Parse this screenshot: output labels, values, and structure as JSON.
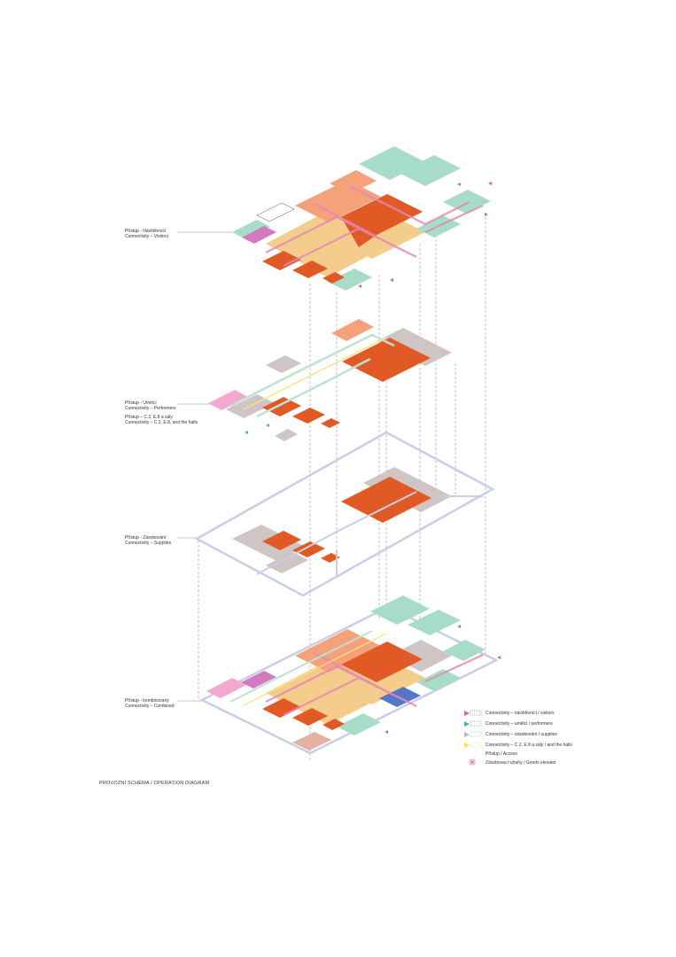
{
  "levels": [
    {
      "line1": "Přístup - Návštěvníci",
      "line2": "Connectivity – Visitors"
    },
    {
      "line1": "Přístup - Umělci",
      "line2": "Connectivity – Performers",
      "line3": "Přístup – C.2, E.8 a sály",
      "line4": "Connectivity – C.2, E.8, and the halls"
    },
    {
      "line1": "Přístup - Zásobování",
      "line2": "Connectivity – Supplies"
    },
    {
      "line1": "Přístup - kombinovaný",
      "line2": "Connectivity – Combined"
    }
  ],
  "legend": [
    {
      "label": "Connectivity – návštěvníci / visitors",
      "color": "#d462a6"
    },
    {
      "label": "Connectivity – umělci / performers",
      "color": "#4fb38d"
    },
    {
      "label": "Connectivity – zásobování / supplies",
      "color": "#a9b6d6"
    },
    {
      "label": "Connectivity – C.2, E.8 a sály / and the halls",
      "color": "#f4e04a"
    },
    {
      "label": "Přístup / Access",
      "color": ""
    },
    {
      "label": "Zásobovací výtahy / Goods elevator",
      "color": "#e8769a"
    }
  ],
  "caption": "PROVOZNÍ SCHÉMA / OPERATION DIAGRAM",
  "colors": {
    "hall": "#e15a26",
    "foyer": "#f4cc8c",
    "salmon": "#f5a27a",
    "mint": "#a7dcc8",
    "grey": "#cfc5c5",
    "pink": "#f3a8d0",
    "purple": "#d27ac0",
    "blue": "#5576c7",
    "outline": "#c8cde8",
    "visitor_path": "#d462a6"
  }
}
